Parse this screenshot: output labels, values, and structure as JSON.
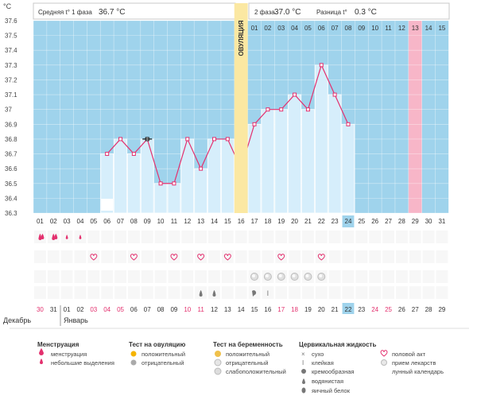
{
  "header": {
    "unit": "°C",
    "phase1_label": "Средняя t° 1 фаза",
    "phase1_value": "36.7 °C",
    "phase2_label": "2 фаза",
    "phase2_value": "37.0 °C",
    "diff_label": "Разница t°",
    "diff_value": "0.3 °C"
  },
  "ovulation_label": "ОВУЛЯЦИЯ",
  "cycle_days_top": [
    "01",
    "02",
    "03",
    "04",
    "05",
    "06",
    "07",
    "08",
    "09",
    "10",
    "11",
    "12",
    "13",
    "14",
    "15"
  ],
  "cycle_days_bottom": [
    "01",
    "02",
    "03",
    "04",
    "05",
    "06",
    "07",
    "08",
    "09",
    "10",
    "11",
    "12",
    "13",
    "14",
    "15",
    "16",
    "17",
    "18",
    "19",
    "20",
    "21",
    "22",
    "23",
    "24",
    "25",
    "26",
    "27",
    "28",
    "29",
    "30",
    "31"
  ],
  "calendar_dates": [
    "30",
    "31",
    "01",
    "02",
    "03",
    "04",
    "05",
    "06",
    "07",
    "08",
    "09",
    "10",
    "11",
    "12",
    "13",
    "14",
    "15",
    "16",
    "17",
    "18",
    "19",
    "20",
    "21",
    "22",
    "23",
    "24",
    "25",
    "26",
    "27",
    "28",
    "29"
  ],
  "month_labels": {
    "december": "Декабрь",
    "january": "Январь"
  },
  "colors": {
    "plot_bg": "#9fd3ec",
    "phase2_bg": "#c7e8f8",
    "bar_fill": "#d6eefb",
    "line": "#e3306e",
    "ovulation_band": "#fbe8a2",
    "highlight_day": "#f7b6c8",
    "today_cell": "#9fd3ec",
    "weekend_red": "#e3306e"
  },
  "chart_data": {
    "type": "line",
    "xlabel": "",
    "ylabel": "°C",
    "ylim": [
      36.3,
      37.6
    ],
    "yticks": [
      "36.3",
      "36.4",
      "36.5",
      "36.6",
      "36.7",
      "36.8",
      "36.9",
      "37",
      "37.1",
      "37.2",
      "37.3",
      "37.4",
      "37.5",
      "37.6"
    ],
    "x": [
      6,
      7,
      8,
      9,
      10,
      11,
      12,
      13,
      14,
      15,
      16,
      17,
      18,
      19,
      20,
      21,
      22,
      23,
      24
    ],
    "values": [
      36.7,
      36.8,
      36.7,
      36.8,
      36.5,
      36.5,
      36.8,
      36.6,
      36.8,
      36.8,
      36.6,
      36.9,
      37.0,
      37.0,
      37.1,
      37.0,
      37.3,
      37.1,
      36.9
    ],
    "ovulation_day": 16,
    "highlight_day": 29,
    "current_day": 24,
    "phase2_start_day": 17,
    "grid": true
  },
  "markers": {
    "moon_day": 6,
    "menstruation_days": [
      1,
      2,
      3,
      4
    ],
    "menstruation_heavy_days": [
      1,
      2
    ],
    "heart_days": [
      5,
      8,
      11,
      13,
      15,
      19,
      22
    ],
    "pregnancy_test_days": [
      17,
      18,
      19,
      20,
      21,
      22
    ],
    "creamy_day": 17,
    "sticky_day": 18,
    "drop_days": [
      13,
      14
    ]
  },
  "calendar_red_days": [
    1,
    5,
    6,
    7,
    12,
    13,
    19,
    20,
    26,
    27
  ],
  "legend": {
    "menstruation": {
      "title": "Менструация",
      "items": [
        "менструация",
        "небольшие выделения"
      ]
    },
    "ovulation_test": {
      "title": "Тест на овуляцию",
      "items": [
        "положительный",
        "отрицательный"
      ]
    },
    "pregnancy_test": {
      "title": "Тест на беременность",
      "items": [
        "положительный",
        "отрицательный",
        "слабоположительный"
      ]
    },
    "cervical": {
      "title": "Цервикальная жидкость",
      "items": [
        "сухо",
        "клейкая",
        "кремообразная",
        "водянистая",
        "яичный белок"
      ]
    },
    "other": {
      "items": [
        "половой акт",
        "прием лекарств",
        "лунный календарь"
      ]
    }
  }
}
